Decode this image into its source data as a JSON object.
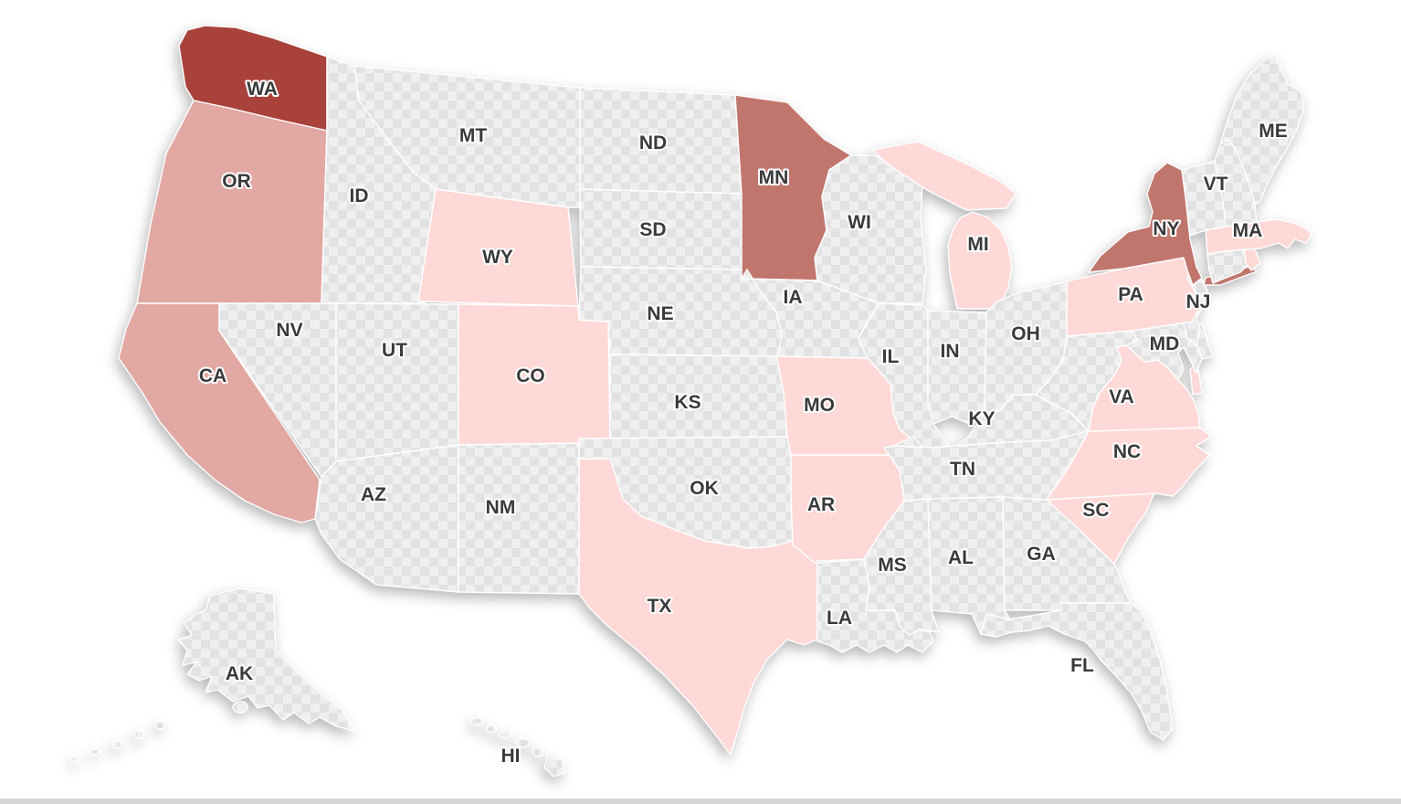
{
  "map": {
    "region": "United States",
    "type": "choropleth",
    "no_data": {
      "pattern": "checkerboard",
      "color_light": "#efefef",
      "color_dark": "#e2e2e2"
    },
    "border_color": "#ffffff",
    "label_color": "#3a3a3a",
    "levels": {
      "highest": "#a8423a",
      "high": "#c0766d",
      "medium": "#e2a8a3",
      "low": "#ffd9d7",
      "none": "checker"
    },
    "states": [
      {
        "abbr": "WA",
        "level": "highest",
        "labeled": true
      },
      {
        "abbr": "OR",
        "level": "medium",
        "labeled": true
      },
      {
        "abbr": "CA",
        "level": "medium",
        "labeled": true
      },
      {
        "abbr": "NV",
        "level": "none",
        "labeled": true
      },
      {
        "abbr": "ID",
        "level": "none",
        "labeled": true
      },
      {
        "abbr": "MT",
        "level": "none",
        "labeled": true
      },
      {
        "abbr": "WY",
        "level": "low",
        "labeled": true
      },
      {
        "abbr": "UT",
        "level": "none",
        "labeled": true
      },
      {
        "abbr": "CO",
        "level": "low",
        "labeled": true
      },
      {
        "abbr": "AZ",
        "level": "none",
        "labeled": true
      },
      {
        "abbr": "NM",
        "level": "none",
        "labeled": true
      },
      {
        "abbr": "ND",
        "level": "none",
        "labeled": true
      },
      {
        "abbr": "SD",
        "level": "none",
        "labeled": true
      },
      {
        "abbr": "NE",
        "level": "none",
        "labeled": true
      },
      {
        "abbr": "KS",
        "level": "none",
        "labeled": true
      },
      {
        "abbr": "OK",
        "level": "none",
        "labeled": true
      },
      {
        "abbr": "TX",
        "level": "low",
        "labeled": true
      },
      {
        "abbr": "MN",
        "level": "high",
        "labeled": true
      },
      {
        "abbr": "IA",
        "level": "none",
        "labeled": true
      },
      {
        "abbr": "WI",
        "level": "none",
        "labeled": true
      },
      {
        "abbr": "MI",
        "level": "low",
        "labeled": true
      },
      {
        "abbr": "IL",
        "level": "none",
        "labeled": true
      },
      {
        "abbr": "IN",
        "level": "none",
        "labeled": true
      },
      {
        "abbr": "OH",
        "level": "none",
        "labeled": true
      },
      {
        "abbr": "MO",
        "level": "low",
        "labeled": true
      },
      {
        "abbr": "AR",
        "level": "low",
        "labeled": true
      },
      {
        "abbr": "LA",
        "level": "none",
        "labeled": true
      },
      {
        "abbr": "KY",
        "level": "none",
        "labeled": true
      },
      {
        "abbr": "TN",
        "level": "none",
        "labeled": true
      },
      {
        "abbr": "MS",
        "level": "none",
        "labeled": true
      },
      {
        "abbr": "AL",
        "level": "none",
        "labeled": true
      },
      {
        "abbr": "GA",
        "level": "none",
        "labeled": true
      },
      {
        "abbr": "FL",
        "level": "none",
        "labeled": true
      },
      {
        "abbr": "SC",
        "level": "low",
        "labeled": true
      },
      {
        "abbr": "NC",
        "level": "low",
        "labeled": true
      },
      {
        "abbr": "VA",
        "level": "low",
        "labeled": true
      },
      {
        "abbr": "WV",
        "level": "none",
        "labeled": false
      },
      {
        "abbr": "MD",
        "level": "none",
        "labeled": true
      },
      {
        "abbr": "DE",
        "level": "none",
        "labeled": false
      },
      {
        "abbr": "NJ",
        "level": "none",
        "labeled": true
      },
      {
        "abbr": "PA",
        "level": "low",
        "labeled": true
      },
      {
        "abbr": "NY",
        "level": "high",
        "labeled": true
      },
      {
        "abbr": "CT",
        "level": "none",
        "labeled": false
      },
      {
        "abbr": "RI",
        "level": "low",
        "labeled": false
      },
      {
        "abbr": "MA",
        "level": "low",
        "labeled": true
      },
      {
        "abbr": "VT",
        "level": "none",
        "labeled": true
      },
      {
        "abbr": "NH",
        "level": "none",
        "labeled": false
      },
      {
        "abbr": "ME",
        "level": "none",
        "labeled": true
      },
      {
        "abbr": "AK",
        "level": "none",
        "labeled": true
      },
      {
        "abbr": "HI",
        "level": "none",
        "labeled": true
      }
    ]
  }
}
